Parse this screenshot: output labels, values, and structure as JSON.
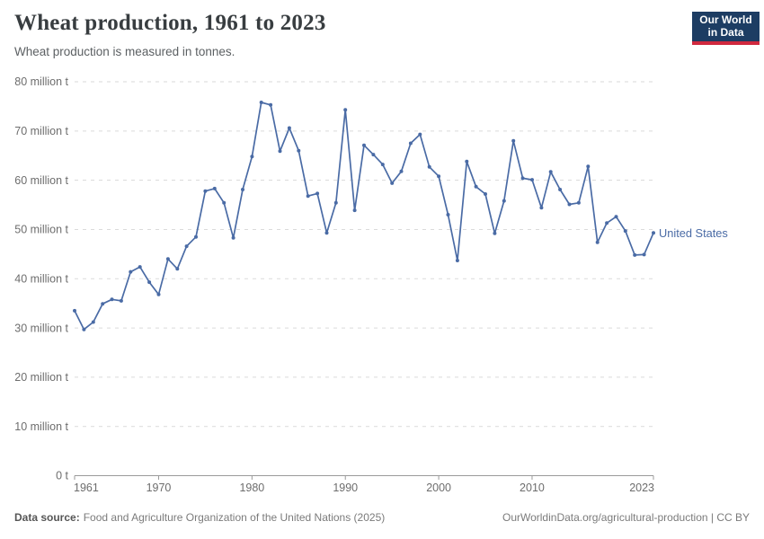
{
  "header": {
    "title": "Wheat production, 1961 to 2023",
    "subtitle": "Wheat production is measured in tonnes."
  },
  "logo": {
    "line1": "Our World",
    "line2": "in Data",
    "bg_color": "#1d3d63",
    "bar_color": "#d0293e"
  },
  "chart_data": {
    "type": "line",
    "title": "Wheat production, 1961 to 2023",
    "subtitle": "Wheat production is measured in tonnes.",
    "xlabel": "",
    "ylabel": "",
    "values_unit": "million tonnes",
    "x_range": [
      1961,
      2023
    ],
    "ylim": [
      0,
      80
    ],
    "grid": "horizontal-dashed",
    "legend_position": "end-of-line",
    "y_ticks": [
      {
        "value": 0,
        "label": "0 t"
      },
      {
        "value": 10,
        "label": "10 million t"
      },
      {
        "value": 20,
        "label": "20 million t"
      },
      {
        "value": 30,
        "label": "30 million t"
      },
      {
        "value": 40,
        "label": "40 million t"
      },
      {
        "value": 50,
        "label": "50 million t"
      },
      {
        "value": 60,
        "label": "60 million t"
      },
      {
        "value": 70,
        "label": "70 million t"
      },
      {
        "value": 80,
        "label": "80 million t"
      }
    ],
    "x_ticks": [
      {
        "year": 1961,
        "label": "1961"
      },
      {
        "year": 1970,
        "label": "1970"
      },
      {
        "year": 1980,
        "label": "1980"
      },
      {
        "year": 1990,
        "label": "1990"
      },
      {
        "year": 2000,
        "label": "2000"
      },
      {
        "year": 2010,
        "label": "2010"
      },
      {
        "year": 2023,
        "label": "2023"
      }
    ],
    "series": [
      {
        "name": "United States",
        "color": "#4a6ba5",
        "x": [
          1961,
          1962,
          1963,
          1964,
          1965,
          1966,
          1967,
          1968,
          1969,
          1970,
          1971,
          1972,
          1973,
          1974,
          1975,
          1976,
          1977,
          1978,
          1979,
          1980,
          1981,
          1982,
          1983,
          1984,
          1985,
          1986,
          1987,
          1988,
          1989,
          1990,
          1991,
          1992,
          1993,
          1994,
          1995,
          1996,
          1997,
          1998,
          1999,
          2000,
          2001,
          2002,
          2003,
          2004,
          2005,
          2006,
          2007,
          2008,
          2009,
          2010,
          2011,
          2012,
          2013,
          2014,
          2015,
          2016,
          2017,
          2018,
          2019,
          2020,
          2021,
          2022,
          2023
        ],
        "values": [
          33.5,
          29.7,
          31.2,
          34.9,
          35.8,
          35.5,
          41.4,
          42.4,
          39.3,
          36.8,
          44.0,
          42.0,
          46.6,
          48.5,
          57.8,
          58.3,
          55.4,
          48.3,
          58.1,
          64.8,
          75.8,
          75.3,
          65.9,
          70.6,
          66.0,
          56.8,
          57.3,
          49.3,
          55.4,
          74.3,
          53.9,
          67.1,
          65.2,
          63.2,
          59.4,
          61.8,
          67.5,
          69.3,
          62.7,
          60.8,
          53.0,
          43.7,
          63.8,
          58.7,
          57.2,
          49.2,
          55.8,
          68.0,
          60.4,
          60.1,
          54.4,
          61.7,
          58.1,
          55.1,
          55.4,
          62.8,
          47.4,
          51.3,
          52.6,
          49.7,
          44.8,
          44.9,
          49.3
        ]
      }
    ],
    "axis_color": "#9a9a9a",
    "gridline_color": "#dadada",
    "tick_label_color": "#6d6d6d"
  },
  "footer": {
    "source_label": "Data source:",
    "source_text": "Food and Agriculture Organization of the United Nations (2025)",
    "right_text": "OurWorldinData.org/agricultural-production | CC BY"
  }
}
